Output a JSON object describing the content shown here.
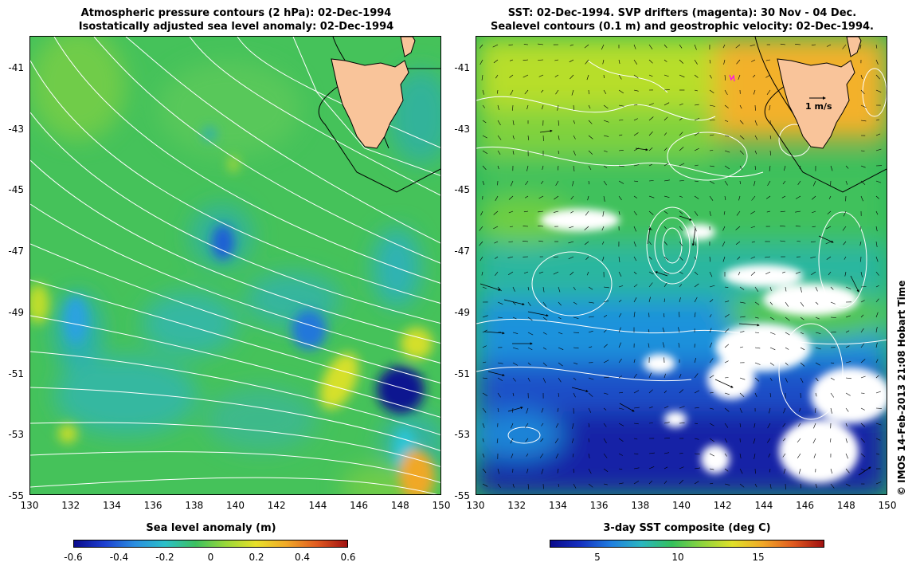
{
  "left_panel": {
    "title_line1": "Atmospheric pressure contours (2 hPa): 02-Dec-1994",
    "title_line2": "Isostatically adjusted sea level anomaly: 02-Dec-1994",
    "colorbar_label": "Sea level anomaly (m)",
    "colorbar_ticks": [
      "-0.6",
      "-0.4",
      "-0.2",
      "0",
      "0.2",
      "0.4",
      "0.6"
    ]
  },
  "right_panel": {
    "title_line1": "SST: 02-Dec-1994. SVP drifters (magenta): 30 Nov - 04 Dec.",
    "title_line2": "Sealevel contours (0.1 m) and geostrophic velocity: 02-Dec-1994.",
    "colorbar_label": "3-day SST composite (deg C)",
    "colorbar_ticks": [
      "5",
      "10",
      "15"
    ],
    "velocity_scale_label": "1 m/s"
  },
  "lat_ticks": [
    "-41",
    "-43",
    "-45",
    "-47",
    "-49",
    "-51",
    "-53",
    "-55"
  ],
  "lon_ticks": [
    "130",
    "132",
    "134",
    "136",
    "138",
    "140",
    "142",
    "144",
    "146",
    "148",
    "150"
  ],
  "credit": "© IMOS 14-Feb-2013 21:08 Hobart Time",
  "colors": {
    "land": "#f9c49a",
    "sla_background": "#45c25a",
    "drifter": "#ff00ff"
  }
}
